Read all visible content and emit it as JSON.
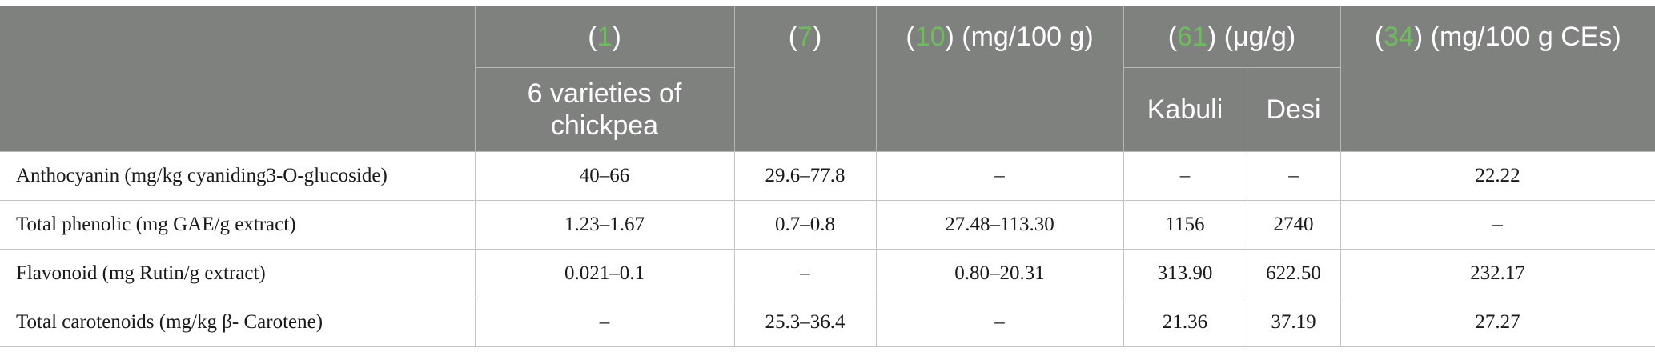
{
  "header": {
    "col1_open": "(",
    "col1_ref": "1",
    "col1_close": ")",
    "col1_sub": "6 varieties of chickpea",
    "col2_open": "(",
    "col2_ref": "7",
    "col2_close": ")",
    "col3_open": "(",
    "col3_ref": "10",
    "col3_close": ") (mg/100 g)",
    "col4_open": "(",
    "col4_ref": "61",
    "col4_close": ") (μg/g)",
    "col4_sub_a": "Kabuli",
    "col4_sub_b": "Desi",
    "col5_open": "(",
    "col5_ref": "34",
    "col5_close": ") (mg/100 g CEs)",
    "ref_color": "#6bbf59"
  },
  "rows": [
    {
      "label": "Anthocyanin (mg/kg cyaniding3-O-glucoside)",
      "c1": "40–66",
      "c2": "29.6–77.8",
      "c3": "–",
      "c4a": "–",
      "c4b": "–",
      "c5": "22.22"
    },
    {
      "label": "Total phenolic (mg GAE/g extract)",
      "c1": "1.23–1.67",
      "c2": "0.7–0.8",
      "c3": "27.48–113.30",
      "c4a": "1156",
      "c4b": "2740",
      "c5": "–"
    },
    {
      "label": "Flavonoid (mg Rutin/g extract)",
      "c1": "0.021–0.1",
      "c2": "–",
      "c3": "0.80–20.31",
      "c4a": "313.90",
      "c4b": "622.50",
      "c5": "232.17"
    },
    {
      "label": "Total carotenoids (mg/kg β- Carotene)",
      "c1": "–",
      "c2": "25.3–36.4",
      "c3": "–",
      "c4a": "21.36",
      "c4b": "37.19",
      "c5": "27.27"
    }
  ]
}
